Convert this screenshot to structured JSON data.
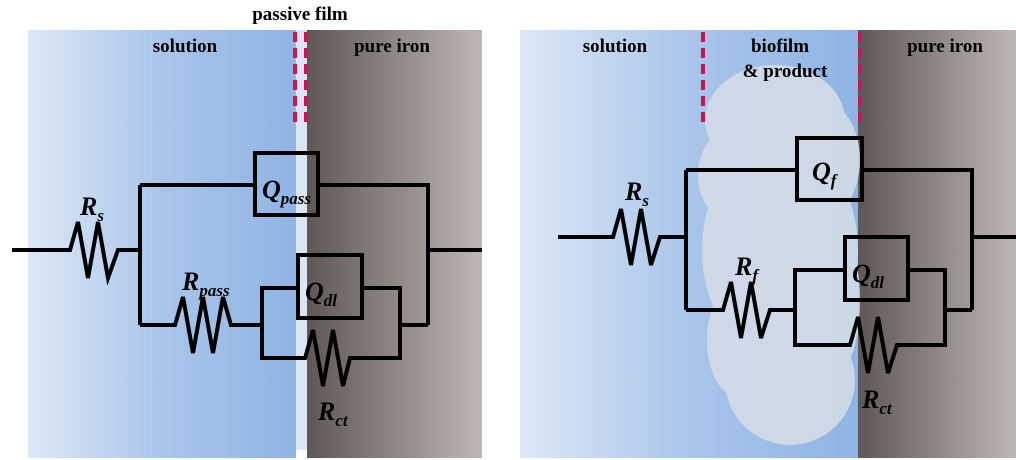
{
  "left": {
    "film_label": "passive film",
    "solution_label": "solution",
    "iron_label": "pure iron",
    "rs": {
      "main": "R",
      "sub": "s"
    },
    "qpass": {
      "main": "Q",
      "sub": "pass"
    },
    "rpass": {
      "main": "R",
      "sub": "pass"
    },
    "qdl": {
      "main": "Q",
      "sub": "dl"
    },
    "rct": {
      "main": "R",
      "sub": "ct"
    }
  },
  "right": {
    "solution_label": "solution",
    "biofilm_label": "biofilm",
    "product_label": "& product",
    "iron_label": "pure iron",
    "qf": {
      "main": "Q",
      "sub": "f"
    },
    "rs": {
      "main": "R",
      "sub": "s"
    },
    "rf": {
      "main": "R",
      "sub": "f"
    },
    "qdl": {
      "main": "Q",
      "sub": "dl"
    },
    "rct": {
      "main": "R",
      "sub": "ct"
    }
  }
}
